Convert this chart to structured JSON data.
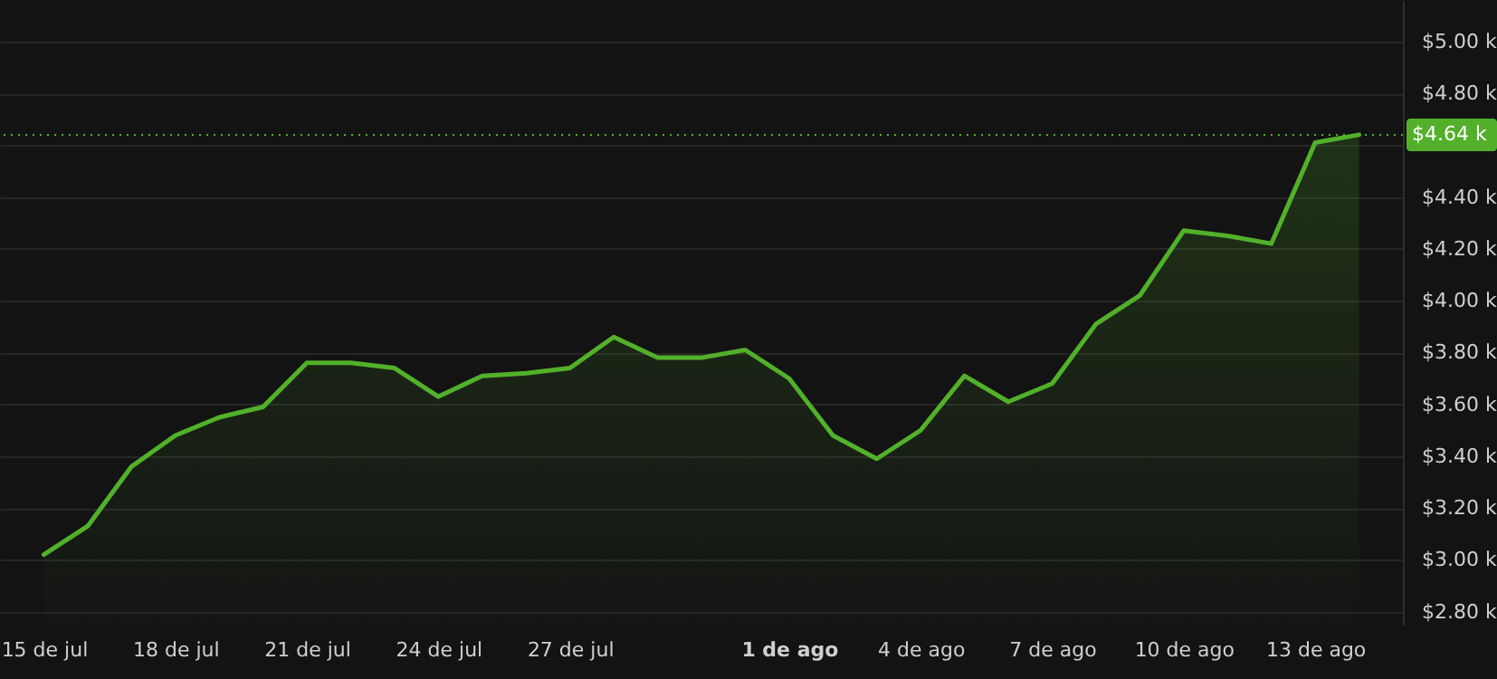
{
  "chart_data": {
    "type": "area",
    "x": [
      "--07-15",
      "--07-16",
      "--07-17",
      "--07-18",
      "--07-19",
      "--07-20",
      "--07-21",
      "--07-22",
      "--07-23",
      "--07-24",
      "--07-25",
      "--07-26",
      "--07-27",
      "--07-28",
      "--07-29",
      "--07-30",
      "--07-31",
      "--08-01",
      "--08-02",
      "--08-03",
      "--08-04",
      "--08-05",
      "--08-06",
      "--08-07",
      "--08-08",
      "--08-09",
      "--08-10",
      "--08-11",
      "--08-12",
      "--08-13",
      "--08-14"
    ],
    "series": [
      {
        "color": "#52b02a",
        "values": [
          3.02,
          3.13,
          3.36,
          3.48,
          3.55,
          3.59,
          3.76,
          3.76,
          3.74,
          3.63,
          3.71,
          3.72,
          3.74,
          3.86,
          3.78,
          3.78,
          3.81,
          3.7,
          3.48,
          3.39,
          3.5,
          3.71,
          3.61,
          3.68,
          3.91,
          4.02,
          4.27,
          4.25,
          4.22,
          4.61,
          4.64
        ]
      }
    ],
    "xlim": [
      "--07-14",
      "--08-15"
    ],
    "xticks": [
      {
        "value": "--07-15",
        "label": "15 de jul"
      },
      {
        "value": "--07-18",
        "label": "18 de jul"
      },
      {
        "value": "--07-21",
        "label": "21 de jul"
      },
      {
        "value": "--07-24",
        "label": "24 de jul"
      },
      {
        "value": "--07-27",
        "label": "27 de jul"
      },
      {
        "value": "--08-01",
        "label": "1 de ago"
      },
      {
        "value": "--08-04",
        "label": "4 de ago"
      },
      {
        "value": "--08-07",
        "label": "7 de ago"
      },
      {
        "value": "--08-10",
        "label": "10 de ago"
      },
      {
        "value": "--08-13",
        "label": "13 de ago"
      }
    ],
    "ylim": [
      2.75,
      5.16
    ],
    "yticks": [
      {
        "value": 2.8,
        "label": "$2.80 k"
      },
      {
        "value": 3.0,
        "label": "$3.00 k"
      },
      {
        "value": 3.2,
        "label": "$3.20 k"
      },
      {
        "value": 3.4,
        "label": "$3.40 k"
      },
      {
        "value": 3.6,
        "label": "$3.60 k"
      },
      {
        "value": 3.8,
        "label": "$3.80 k"
      },
      {
        "value": 4.0,
        "label": "$4.00 k"
      },
      {
        "value": 4.2,
        "label": "$4.20 k"
      },
      {
        "value": 4.4,
        "label": "$4.40 k"
      },
      {
        "value": 4.6,
        "label": null
      },
      {
        "value": 4.8,
        "label": "$4.80 k"
      },
      {
        "value": 5.0,
        "label": "$5.00 k"
      }
    ],
    "ref_lines": [
      {
        "axis": "y",
        "value": 4.64,
        "label": "$4.64 k",
        "color": "#52b02a",
        "line_style": "dotted"
      }
    ],
    "grid": "y",
    "marker": "none",
    "line_style": "solid"
  }
}
